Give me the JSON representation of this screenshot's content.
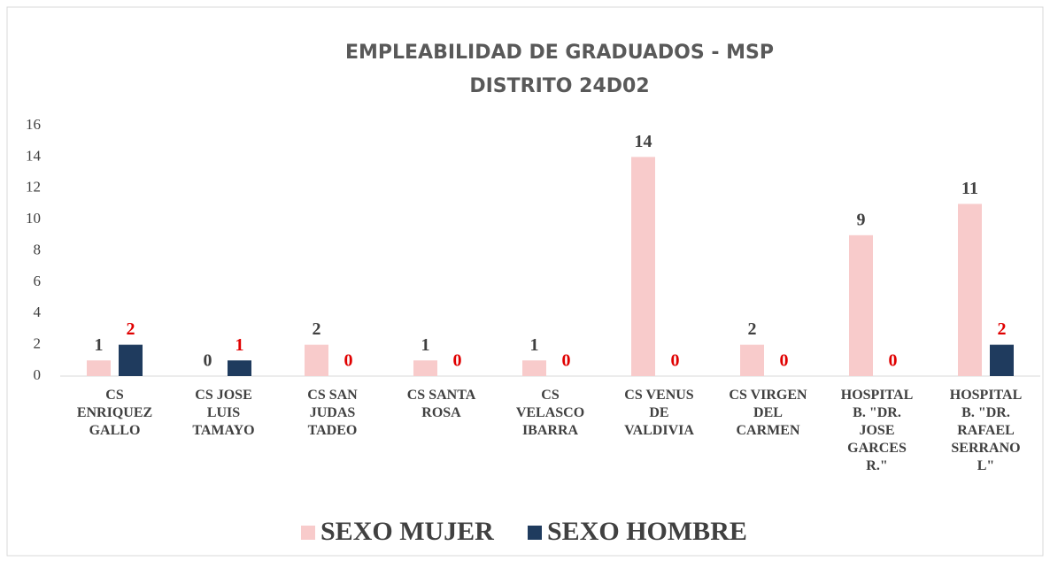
{
  "chart_data": {
    "type": "bar",
    "title": "EMPLEABILIDAD DE GRADUADOS - MSP",
    "subtitle": "DISTRITO 24D02",
    "categories": [
      "CS ENRIQUEZ GALLO",
      "CS JOSE LUIS TAMAYO",
      "CS SAN JUDAS TADEO",
      "CS SANTA ROSA",
      "CS VELASCO IBARRA",
      "CS VENUS DE VALDIVIA",
      "CS VIRGEN DEL CARMEN",
      "HOSPITAL B. \"DR. JOSE GARCES R.\"",
      "HOSPITAL B. \"DR. RAFAEL SERRANO L\""
    ],
    "series": [
      {
        "name": "SEXO MUJER",
        "color": "#f8cbcb",
        "label_color": "#404040",
        "values": [
          1,
          0,
          2,
          1,
          1,
          14,
          2,
          9,
          11
        ]
      },
      {
        "name": "SEXO HOMBRE",
        "color": "#1f3b5e",
        "label_color": "#e00000",
        "values": [
          2,
          1,
          0,
          0,
          0,
          0,
          0,
          0,
          2
        ]
      }
    ],
    "ylim": [
      0,
      16
    ],
    "yticks": [
      0,
      2,
      4,
      6,
      8,
      10,
      12,
      14,
      16
    ],
    "grid": false,
    "legend": "bottom"
  }
}
